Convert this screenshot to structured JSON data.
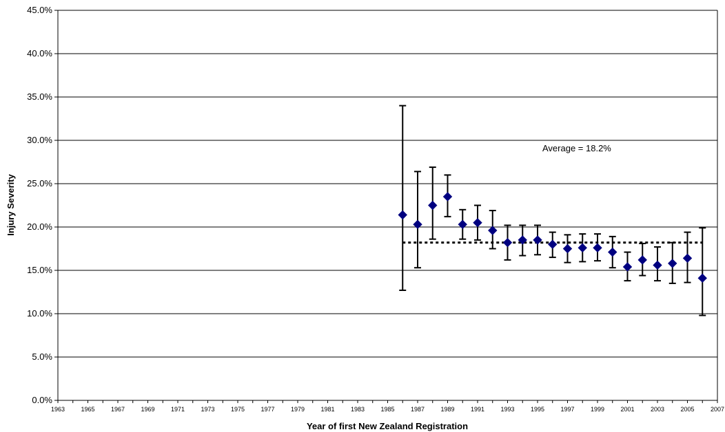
{
  "chart_data": {
    "type": "scatter",
    "title": "",
    "xlabel": "Year of first New Zealand Registration",
    "ylabel": "Injury Severity",
    "xlim": [
      1963,
      2007
    ],
    "ylim": [
      0,
      45
    ],
    "x_ticks": [
      "1963",
      "1965",
      "1967",
      "1969",
      "1971",
      "1973",
      "1975",
      "1977",
      "1979",
      "1981",
      "1983",
      "1985",
      "1987",
      "1989",
      "1991",
      "1993",
      "1995",
      "1997",
      "1999",
      "2001",
      "2003",
      "2005",
      "2007"
    ],
    "y_ticks": [
      "0.0%",
      "5.0%",
      "10.0%",
      "15.0%",
      "20.0%",
      "25.0%",
      "30.0%",
      "35.0%",
      "40.0%",
      "45.0%"
    ],
    "grid": "horizontal major gridlines",
    "legend": "none",
    "marker_color": "#000080",
    "error_bar_color": "#000000",
    "average_line": {
      "value": 18.2,
      "x_start": 1986,
      "x_end": 2006,
      "style": "dotted"
    },
    "annotation": "Average = 18.2%",
    "series": [
      {
        "points": [
          {
            "x": 1986,
            "y": 21.4,
            "low": 12.7,
            "high": 34.0
          },
          {
            "x": 1987,
            "y": 20.3,
            "low": 15.3,
            "high": 26.4
          },
          {
            "x": 1988,
            "y": 22.5,
            "low": 18.6,
            "high": 26.9
          },
          {
            "x": 1989,
            "y": 23.5,
            "low": 21.2,
            "high": 26.0
          },
          {
            "x": 1990,
            "y": 20.3,
            "low": 18.6,
            "high": 22.0
          },
          {
            "x": 1991,
            "y": 20.5,
            "low": 18.5,
            "high": 22.5
          },
          {
            "x": 1992,
            "y": 19.6,
            "low": 17.5,
            "high": 21.9
          },
          {
            "x": 1993,
            "y": 18.2,
            "low": 16.2,
            "high": 20.2
          },
          {
            "x": 1994,
            "y": 18.5,
            "low": 16.7,
            "high": 20.2
          },
          {
            "x": 1995,
            "y": 18.5,
            "low": 16.8,
            "high": 20.2
          },
          {
            "x": 1996,
            "y": 18.0,
            "low": 16.5,
            "high": 19.4
          },
          {
            "x": 1997,
            "y": 17.5,
            "low": 15.9,
            "high": 19.1
          },
          {
            "x": 1998,
            "y": 17.6,
            "low": 16.0,
            "high": 19.2
          },
          {
            "x": 1999,
            "y": 17.6,
            "low": 16.1,
            "high": 19.2
          },
          {
            "x": 2000,
            "y": 17.1,
            "low": 15.3,
            "high": 18.9
          },
          {
            "x": 2001,
            "y": 15.4,
            "low": 13.8,
            "high": 17.1
          },
          {
            "x": 2002,
            "y": 16.2,
            "low": 14.4,
            "high": 18.1
          },
          {
            "x": 2003,
            "y": 15.6,
            "low": 13.8,
            "high": 17.7
          },
          {
            "x": 2004,
            "y": 15.8,
            "low": 13.5,
            "high": 18.2
          },
          {
            "x": 2005,
            "y": 16.4,
            "low": 13.6,
            "high": 19.4
          },
          {
            "x": 2006,
            "y": 14.1,
            "low": 9.8,
            "high": 19.9
          }
        ]
      }
    ]
  }
}
